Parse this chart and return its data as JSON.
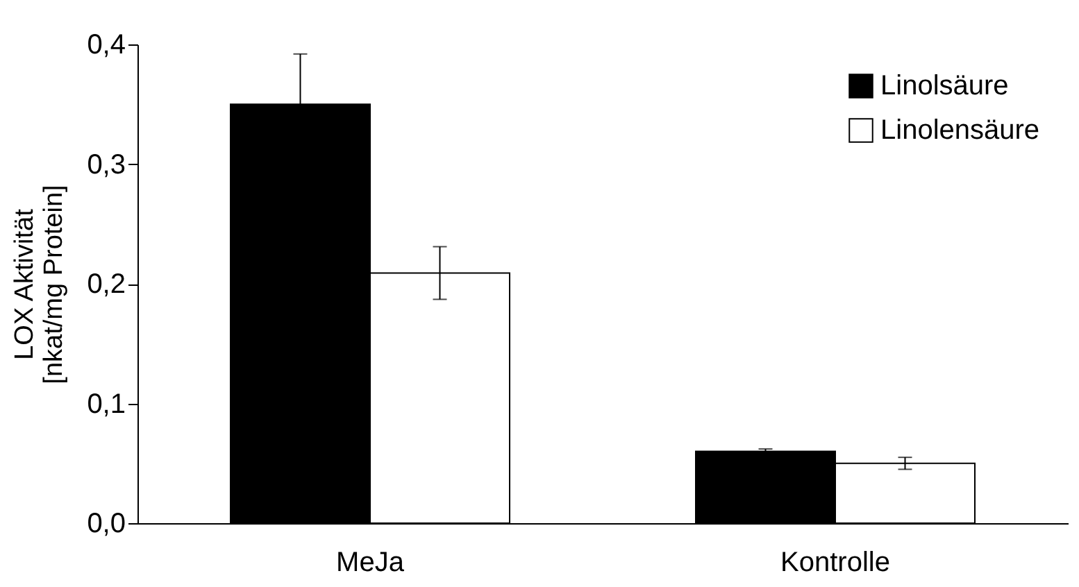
{
  "chart_data": {
    "type": "bar",
    "ylabel": "LOX Aktivität\n[nkat/mg Protein]",
    "categories": [
      "MeJa",
      "Kontrolle"
    ],
    "series": [
      {
        "name": "Linolsäure",
        "color": "#000000",
        "values": [
          0.35,
          0.06
        ],
        "errors": [
          0.042,
          0.002
        ]
      },
      {
        "name": "Linolensäure",
        "color": "#ffffff",
        "values": [
          0.209,
          0.05
        ],
        "errors": [
          0.022,
          0.005
        ]
      }
    ],
    "ylim": [
      0,
      0.4
    ],
    "yticks": [
      {
        "value": 0,
        "label": "0,0"
      },
      {
        "value": 0.1,
        "label": "0,1"
      },
      {
        "value": 0.2,
        "label": "0,2"
      },
      {
        "value": 0.3,
        "label": "0,3"
      },
      {
        "value": 0.4,
        "label": "0,4"
      }
    ],
    "grid": false,
    "legend": "top right"
  }
}
